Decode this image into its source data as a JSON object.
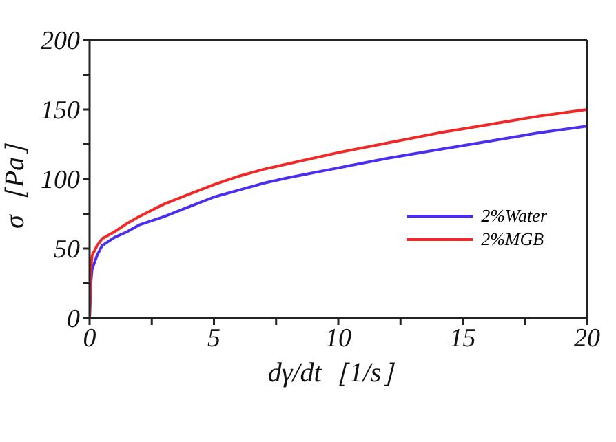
{
  "chart_data": {
    "type": "line",
    "xlabel": "dγ/dt［1/s］",
    "ylabel": "σ［Pa］",
    "xlim": [
      0,
      20
    ],
    "ylim": [
      0,
      200
    ],
    "xticks": [
      0,
      {
        "value": 2.5,
        "label": null
      },
      5,
      {
        "value": 7.5,
        "label": null
      },
      10,
      {
        "value": 12.5,
        "label": null
      },
      15,
      {
        "value": 17.5,
        "label": null
      },
      20
    ],
    "yticks": [
      0,
      {
        "value": 25,
        "label": null
      },
      50,
      {
        "value": 75,
        "label": null
      },
      100,
      {
        "value": 125,
        "label": null
      },
      150,
      {
        "value": 175,
        "label": null
      },
      200
    ],
    "legend": "right",
    "marker": "none",
    "line_style": "solid",
    "series": [
      {
        "name": "2%Water",
        "color": "#4a2ff0",
        "x": [
          0,
          0.05,
          0.1,
          0.3,
          0.5,
          1,
          1.5,
          2,
          3,
          4,
          5,
          6,
          7,
          8,
          10,
          12,
          14,
          16,
          18,
          20
        ],
        "values": [
          0,
          25,
          35,
          45,
          52,
          58,
          62,
          67,
          73,
          80,
          87,
          92,
          97,
          101,
          108,
          115,
          121,
          127,
          133,
          138
        ]
      },
      {
        "name": "2%MGB",
        "color": "#f02828",
        "x": [
          0,
          0.05,
          0.1,
          0.3,
          0.5,
          1,
          1.5,
          2,
          3,
          4,
          5,
          6,
          7,
          8,
          10,
          12,
          14,
          16,
          18,
          20
        ],
        "values": [
          0,
          35,
          45,
          52,
          57,
          62,
          68,
          73,
          82,
          89,
          96,
          102,
          107,
          111,
          119,
          126,
          133,
          139,
          145,
          150
        ]
      }
    ]
  }
}
